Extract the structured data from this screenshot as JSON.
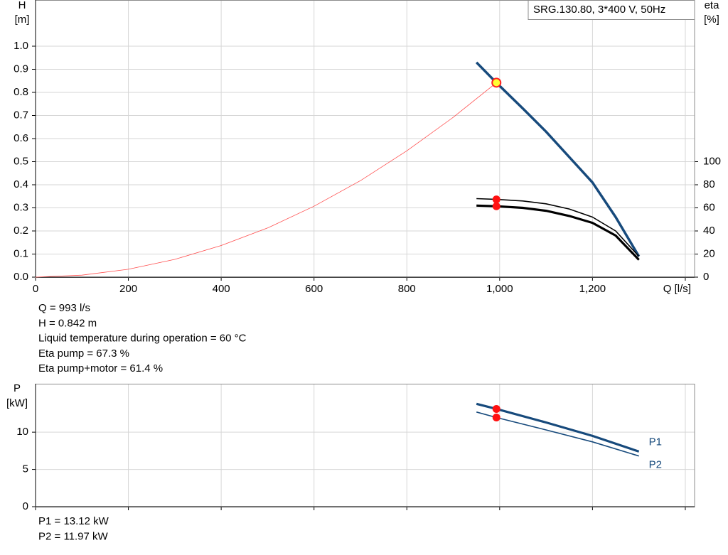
{
  "chart_data": [
    {
      "type": "line",
      "title": "SRG.130.80, 3*400 V, 50Hz",
      "y_label": [
        "H",
        "[m]"
      ],
      "y2_label": [
        "eta",
        "[%]"
      ],
      "xlim": [
        0,
        1420
      ],
      "xticks": [
        0,
        200,
        400,
        600,
        800,
        {
          "value": 1000,
          "label": "1,000"
        },
        {
          "value": 1200,
          "label": "1,200"
        },
        {
          "value": 1400,
          "label": "Q [l/s]"
        }
      ],
      "ylim": [
        0,
        1.2
      ],
      "yticks": [
        {
          "value": 0,
          "label": "0.0"
        },
        0.1,
        0.2,
        0.3,
        0.4,
        0.5,
        0.6,
        0.7,
        0.8,
        0.9,
        {
          "value": 1,
          "label": "1.0"
        }
      ],
      "y2lim": [
        0,
        240
      ],
      "y2ticks": [
        0,
        20,
        40,
        60,
        80,
        100
      ],
      "grid": true,
      "operating_q": 993,
      "series": [
        {
          "color": "#ff4d4d",
          "line_width": 0.8,
          "x": [
            0,
            100,
            200,
            300,
            400,
            500,
            600,
            700,
            800,
            900,
            993
          ],
          "values": [
            0,
            0.0085,
            0.034,
            0.077,
            0.137,
            0.213,
            0.307,
            0.418,
            0.547,
            0.692,
            0.842
          ]
        },
        {
          "color": "#174a7c",
          "line_width": 3.5,
          "x": [
            950,
            993,
            1050,
            1100,
            1150,
            1200,
            1250,
            1300
          ],
          "values": [
            0.93,
            0.842,
            0.73,
            0.63,
            0.52,
            0.41,
            0.26,
            0.09
          ],
          "operating_marker": "yellow"
        },
        {
          "color": "#000000",
          "line_width": 1.6,
          "axis": "y2",
          "x": [
            950,
            993,
            1050,
            1100,
            1150,
            1200,
            1250,
            1300
          ],
          "values": [
            68,
            67.3,
            66,
            63.5,
            59,
            52,
            40,
            18
          ],
          "operating_marker": "red"
        },
        {
          "color": "#000000",
          "line_width": 3.2,
          "axis": "y2",
          "x": [
            950,
            993,
            1050,
            1100,
            1150,
            1200,
            1250,
            1300
          ],
          "values": [
            62,
            61.4,
            60,
            57.5,
            53,
            47,
            36,
            15
          ],
          "operating_marker": "red"
        }
      ],
      "notes": [
        "Q = 993 l/s",
        "H = 0.842 m",
        "Liquid temperature during operation = 60 °C",
        "Eta pump = 67.3 %",
        "Eta pump+motor = 61.4 %"
      ]
    },
    {
      "type": "line",
      "y_label": [
        "P",
        "[kW]"
      ],
      "xlim": [
        0,
        1420
      ],
      "xticks": [
        0,
        200,
        400,
        600,
        800,
        1000,
        1200,
        1400
      ],
      "ylim": [
        0,
        16.5
      ],
      "yticks": [
        0,
        5,
        10
      ],
      "grid": true,
      "operating_q": 993,
      "series": [
        {
          "name": "P1",
          "color": "#174a7c",
          "line_width": 3.2,
          "x": [
            950,
            993,
            1100,
            1200,
            1300
          ],
          "values": [
            13.8,
            13.12,
            11.3,
            9.5,
            7.4
          ],
          "operating_marker": "red"
        },
        {
          "name": "P2",
          "color": "#174a7c",
          "line_width": 1.6,
          "x": [
            950,
            993,
            1100,
            1200,
            1300
          ],
          "values": [
            12.7,
            11.97,
            10.3,
            8.7,
            6.8
          ],
          "operating_marker": "red"
        }
      ],
      "notes": [
        "P1 = 13.12 kW",
        "P2 = 11.97 kW"
      ]
    }
  ]
}
